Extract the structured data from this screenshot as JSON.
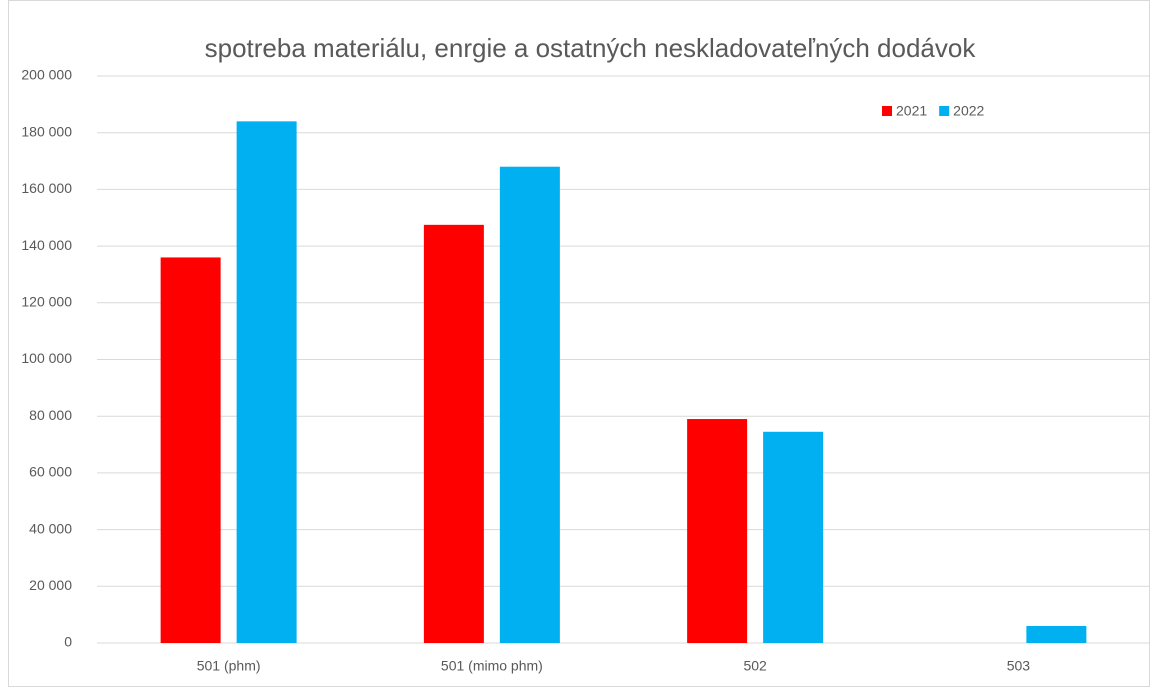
{
  "chart_data": {
    "type": "bar",
    "title": "spotreba materiálu, enrgie a ostatných neskladovateľných dodávok",
    "categories": [
      "501 (phm)",
      "501 (mimo phm)",
      "502",
      "503"
    ],
    "series": [
      {
        "name": "2021",
        "color": "#ff0000",
        "values": [
          136000,
          147500,
          79000,
          0
        ]
      },
      {
        "name": "2022",
        "color": "#00b0f0",
        "values": [
          184000,
          168000,
          74500,
          6000
        ]
      }
    ],
    "ylim": [
      0,
      200000
    ],
    "yticks": [
      0,
      {
        "value": 20000,
        "label": "20 000"
      },
      {
        "value": 40000,
        "label": "40 000"
      },
      {
        "value": 60000,
        "label": "60 000"
      },
      {
        "value": 80000,
        "label": "80 000"
      },
      {
        "value": 100000,
        "label": "100 000"
      },
      {
        "value": 120000,
        "label": "120 000"
      },
      {
        "value": 140000,
        "label": "140 000"
      },
      {
        "value": 160000,
        "label": "160 000"
      },
      {
        "value": 180000,
        "label": "180 000"
      },
      {
        "value": 200000,
        "label": "200 000"
      }
    ],
    "grid": true,
    "legend": "top-right"
  }
}
